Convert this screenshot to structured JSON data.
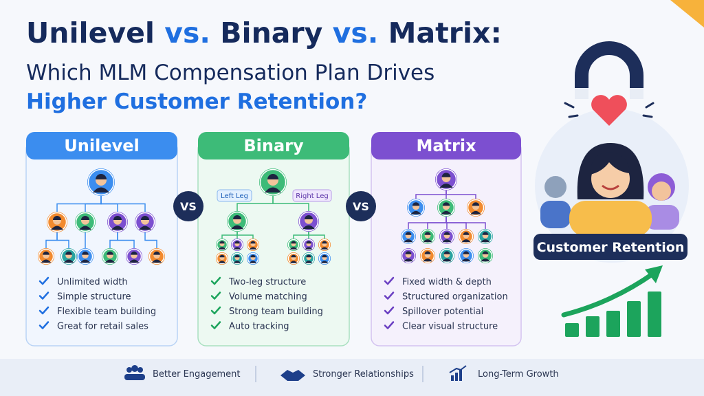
{
  "title": {
    "segments": [
      "Unilevel",
      "vs.",
      "Binary",
      "vs.",
      "Matrix:"
    ]
  },
  "subtitle": {
    "line1": "Which MLM Compensation Plan Drives",
    "line2": "Higher Customer Retention?"
  },
  "panels": [
    {
      "name": "Unilevel",
      "features": [
        "Unlimited width",
        "Simple structure",
        "Flexible team building",
        "Great for retail sales"
      ]
    },
    {
      "name": "Binary",
      "leg_labels": [
        "Left Leg",
        "Right Leg"
      ],
      "features": [
        "Two-leg structure",
        "Volume matching",
        "Strong team building",
        "Auto tracking"
      ]
    },
    {
      "name": "Matrix",
      "features": [
        "Fixed width & depth",
        "Structured organization",
        "Spillover potential",
        "Clear visual structure"
      ]
    }
  ],
  "versus": [
    "VS",
    "VS"
  ],
  "badge": "Customer Retention",
  "footer": [
    "Better Engagement",
    "Stronger Relationships",
    "Long-Term Growth"
  ]
}
